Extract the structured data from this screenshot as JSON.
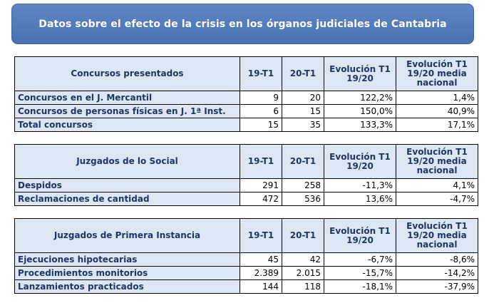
{
  "title": "Datos sobre el efecto de la crisis en los órganos judiciales de Cantabria",
  "colors": {
    "banner": "#5078b9",
    "header_fill": "#dde7f3",
    "header_text": "#1f3566"
  },
  "columns": {
    "c1": "19-T1",
    "c2": "20-T1",
    "c3": "Evolución T1 19/20",
    "c4": "Evolución T1 19/20 media nacional"
  },
  "sections": [
    {
      "title": "Concursos presentados",
      "rows": [
        {
          "label": "Concursos en el J. Mercantil",
          "v1": "9",
          "v2": "20",
          "v3": "122,2%",
          "v4": "1,4%"
        },
        {
          "label": "Concursos de personas físicas en J. 1ª Inst.",
          "v1": "6",
          "v2": "15",
          "v3": "150,0%",
          "v4": "40,9%"
        },
        {
          "label": "Total concursos",
          "v1": "15",
          "v2": "35",
          "v3": "133,3%",
          "v4": "17,1%"
        }
      ]
    },
    {
      "title": "Juzgados de lo Social",
      "rows": [
        {
          "label": "Despidos",
          "v1": "291",
          "v2": "258",
          "v3": "-11,3%",
          "v4": "4,1%"
        },
        {
          "label": "Reclamaciones de cantidad",
          "v1": "472",
          "v2": "536",
          "v3": "13,6%",
          "v4": "-4,7%"
        }
      ]
    },
    {
      "title": "Juzgados de Primera Instancia",
      "rows": [
        {
          "label": "Ejecuciones hipotecarias",
          "v1": "45",
          "v2": "42",
          "v3": "-6,7%",
          "v4": "-8,6%"
        },
        {
          "label": "Procedimientos monitorios",
          "v1": "2.389",
          "v2": "2.015",
          "v3": "-15,7%",
          "v4": "-14,2%"
        },
        {
          "label": "Lanzamientos practicados",
          "v1": "144",
          "v2": "118",
          "v3": "-18,1%",
          "v4": "-37,9%"
        }
      ]
    }
  ]
}
